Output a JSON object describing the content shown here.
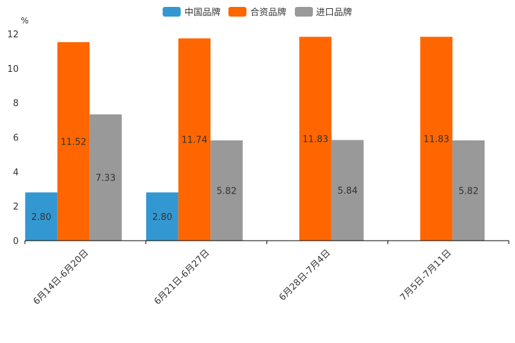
{
  "chart_data": {
    "type": "bar",
    "title": "",
    "ylabel": "%",
    "xlabel": "",
    "ylim": [
      0,
      12
    ],
    "yticks": [
      0,
      2,
      4,
      6,
      8,
      10,
      12
    ],
    "categories": [
      "6月14日-6月20日",
      "6月21日-6月27日",
      "6月28日-7月4日",
      "7月5日-7月11日"
    ],
    "series": [
      {
        "name": "中国品牌",
        "color": "#3398d1",
        "values": [
          2.8,
          2.8,
          null,
          null
        ],
        "labels": [
          "2.80",
          "2.80",
          null,
          null
        ]
      },
      {
        "name": "合资品牌",
        "color": "#ff6600",
        "values": [
          11.52,
          11.74,
          11.83,
          11.83
        ],
        "labels": [
          "11.52",
          "11.74",
          "11.83",
          "11.83"
        ]
      },
      {
        "name": "进口品牌",
        "color": "#999999",
        "values": [
          7.33,
          5.82,
          5.84,
          5.82
        ],
        "labels": [
          "7.33",
          "5.82",
          "5.84",
          "5.82"
        ]
      }
    ],
    "legend_position": "top-center"
  }
}
